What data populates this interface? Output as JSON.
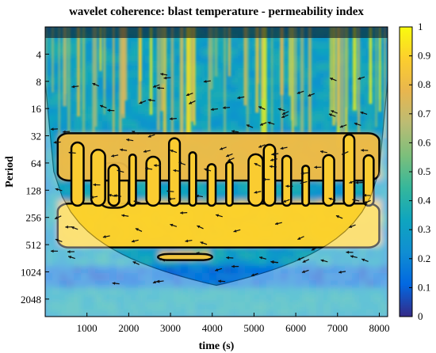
{
  "chart_data": {
    "type": "heatmap",
    "title": "wavelet coherence: blast temperature - permeability index",
    "xlabel": "time (s)",
    "ylabel": "Period",
    "xlim": [
      0,
      8200
    ],
    "x_ticks": [
      1000,
      2000,
      3000,
      4000,
      5000,
      6000,
      7000,
      8000
    ],
    "x_tick_labels": [
      "1000",
      "2000",
      "3000",
      "4000",
      "5000",
      "6000",
      "7000",
      "8000"
    ],
    "y_scale": "log2",
    "ylim": [
      2,
      3200
    ],
    "y_ticks": [
      4,
      8,
      16,
      32,
      64,
      128,
      256,
      512,
      1024,
      2048
    ],
    "y_tick_labels": [
      "4",
      "8",
      "16",
      "32",
      "64",
      "128",
      "256",
      "512",
      "1024",
      "2048"
    ],
    "colorbar": {
      "range": [
        0,
        1
      ],
      "ticks": [
        0,
        0.1,
        0.2,
        0.3,
        0.4,
        0.5,
        0.6,
        0.7,
        0.8,
        0.9,
        1
      ],
      "tick_labels": [
        "0",
        "0.1",
        "0.2",
        "0.3",
        "0.4",
        "0.5",
        "0.6",
        "0.7",
        "0.8",
        "0.9",
        "1"
      ],
      "colormap": "parula",
      "colors": [
        "#352a87",
        "#0268e1",
        "#108ed2",
        "#0fa5bf",
        "#35b79b",
        "#7cbf7b",
        "#bbbc74",
        "#e8b64f",
        "#fcce2e",
        "#f9fb0e"
      ]
    },
    "high_coherence_regions": [
      {
        "period_range": [
          180,
          550
        ],
        "time_range": [
          300,
          8000
        ],
        "coherence": 0.9
      },
      {
        "period_range": [
          64,
          200
        ],
        "time_range": [
          1300,
          2000
        ],
        "coherence": 0.85
      },
      {
        "period_range": [
          30,
          100
        ],
        "time_range": [
          300,
          8000
        ],
        "coherence": 0.8
      },
      {
        "period_range": [
          650,
          760
        ],
        "time_range": [
          2700,
          4000
        ],
        "coherence": 0.85
      }
    ],
    "cone_of_influence": true,
    "significance_contours": true,
    "phase_arrows": true
  }
}
